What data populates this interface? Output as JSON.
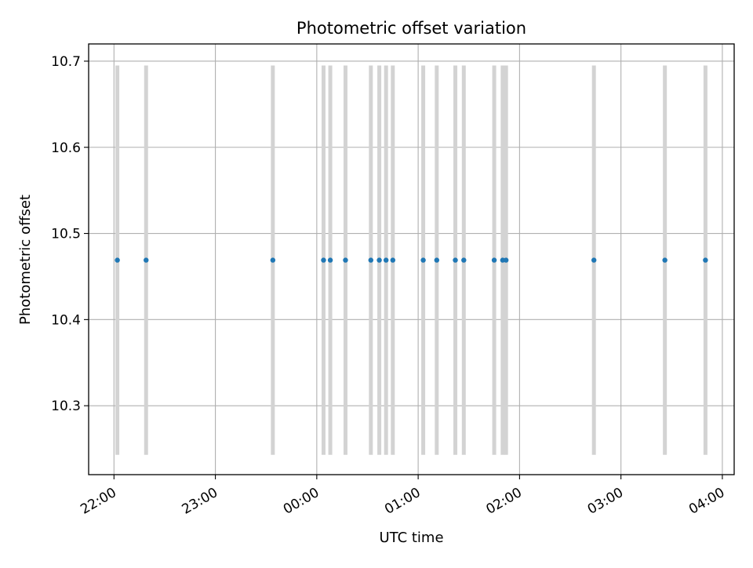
{
  "chart_data": {
    "type": "scatter",
    "title": "Photometric offset variation",
    "xlabel": "UTC time",
    "ylabel": "Photometric offset",
    "x_axis_type": "time",
    "x_tick_labels": [
      "22:00",
      "23:00",
      "00:00",
      "01:00",
      "02:00",
      "03:00",
      "04:00"
    ],
    "x_tick_times": [
      "2000-01-01T22:00",
      "2000-01-01T23:00",
      "2000-01-02T00:00",
      "2000-01-02T01:00",
      "2000-01-02T02:00",
      "2000-01-02T03:00",
      "2000-01-02T04:00"
    ],
    "xlim": [
      "2000-01-01T21:45",
      "2000-01-02T04:07"
    ],
    "ylim": [
      10.22,
      10.72
    ],
    "y_ticks": [
      10.3,
      10.4,
      10.5,
      10.6,
      10.7
    ],
    "y_tick_labels": [
      "10.3",
      "10.4",
      "10.5",
      "10.6",
      "10.7"
    ],
    "grid": true,
    "error_bar_range": [
      10.243,
      10.695
    ],
    "colors": {
      "points": "#1f77b4",
      "error_bars": "#d3d3d3",
      "grid": "#b0b0b0",
      "frame": "#000000"
    },
    "points": [
      {
        "x": "2000-01-01T22:02",
        "y": 10.469
      },
      {
        "x": "2000-01-01T22:19",
        "y": 10.469
      },
      {
        "x": "2000-01-01T23:34",
        "y": 10.469
      },
      {
        "x": "2000-01-02T00:04",
        "y": 10.469
      },
      {
        "x": "2000-01-02T00:08",
        "y": 10.469
      },
      {
        "x": "2000-01-02T00:17",
        "y": 10.469
      },
      {
        "x": "2000-01-02T00:32",
        "y": 10.469
      },
      {
        "x": "2000-01-02T00:37",
        "y": 10.469
      },
      {
        "x": "2000-01-02T00:41",
        "y": 10.469
      },
      {
        "x": "2000-01-02T00:45",
        "y": 10.469
      },
      {
        "x": "2000-01-02T01:03",
        "y": 10.469
      },
      {
        "x": "2000-01-02T01:11",
        "y": 10.469
      },
      {
        "x": "2000-01-02T01:22",
        "y": 10.469
      },
      {
        "x": "2000-01-02T01:27",
        "y": 10.469
      },
      {
        "x": "2000-01-02T01:45",
        "y": 10.469
      },
      {
        "x": "2000-01-02T01:50",
        "y": 10.469
      },
      {
        "x": "2000-01-02T01:52",
        "y": 10.469
      },
      {
        "x": "2000-01-02T02:44",
        "y": 10.469
      },
      {
        "x": "2000-01-02T03:26",
        "y": 10.469
      },
      {
        "x": "2000-01-02T03:50",
        "y": 10.469
      }
    ]
  }
}
